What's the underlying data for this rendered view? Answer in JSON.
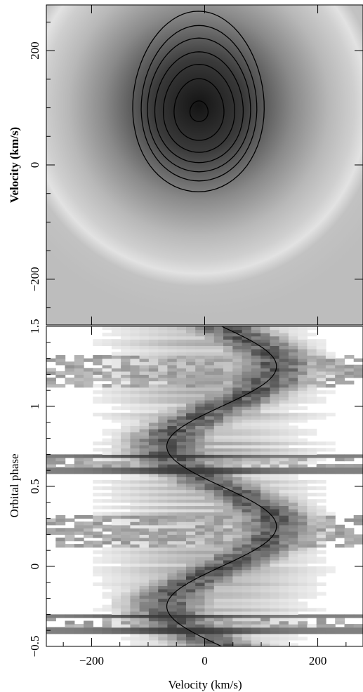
{
  "chart_data": [
    {
      "type": "heatmap",
      "panel": "doppler-tomogram",
      "xlabel": "",
      "ylabel": "Velocity (km/s)",
      "xlim": [
        -280,
        280
      ],
      "ylim": [
        -280,
        280
      ],
      "yticks": [
        -200,
        0,
        200
      ],
      "xticks": [
        -200,
        0,
        200
      ],
      "colormap": "grayscale-inverted",
      "emission_peak": {
        "vx": -10,
        "vy": 95
      },
      "contour_levels": [
        {
          "vx": -10,
          "vy": 94,
          "rx": 16,
          "ry": 18
        },
        {
          "vx": -10,
          "vy": 97,
          "rx": 44,
          "ry": 54
        },
        {
          "vx": -10,
          "vy": 99,
          "rx": 63,
          "ry": 77
        },
        {
          "vx": -10,
          "vy": 101,
          "rx": 78,
          "ry": 97
        },
        {
          "vx": -10,
          "vy": 105,
          "rx": 91,
          "ry": 117
        },
        {
          "vx": -10,
          "vy": 108,
          "rx": 102,
          "ry": 136
        },
        {
          "vx": -11,
          "vy": 111,
          "rx": 116,
          "ry": 158
        }
      ]
    },
    {
      "type": "heatmap",
      "panel": "trailed-spectra",
      "xlabel": "Velocity (km/s)",
      "ylabel": "Orbital phase",
      "xlim": [
        -280,
        280
      ],
      "ylim": [
        -0.5,
        1.5
      ],
      "xticks": [
        -200,
        0,
        200
      ],
      "yticks": [
        -0.5,
        0,
        0.5,
        1,
        1.5
      ],
      "colormap": "grayscale-inverted",
      "sine_curve": {
        "gamma": 30,
        "amplitude": 97,
        "phase_of_max": 0.25,
        "period": 1
      },
      "dark_bands": [
        -0.31,
        -0.4,
        0.69,
        0.6
      ]
    }
  ]
}
